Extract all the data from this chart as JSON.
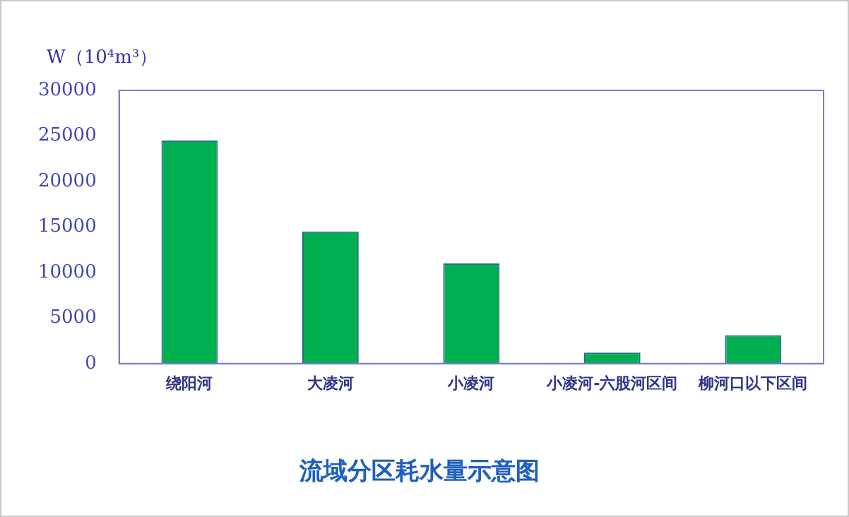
{
  "chart_data": {
    "type": "bar",
    "title": "流域分区耗水量示意图",
    "ylabel": "W（10⁴m³）",
    "categories": [
      "绕阳河",
      "大凌河",
      "小凌河",
      "小凌河-六股河区间",
      "柳河口以下区间"
    ],
    "values": [
      24500,
      14500,
      11000,
      1200,
      3100
    ],
    "color": "#00b050",
    "ylim": [
      0,
      30000
    ],
    "yticks": [
      0,
      5000,
      10000,
      15000,
      20000,
      25000,
      30000
    ],
    "grid": false,
    "legend": false
  }
}
